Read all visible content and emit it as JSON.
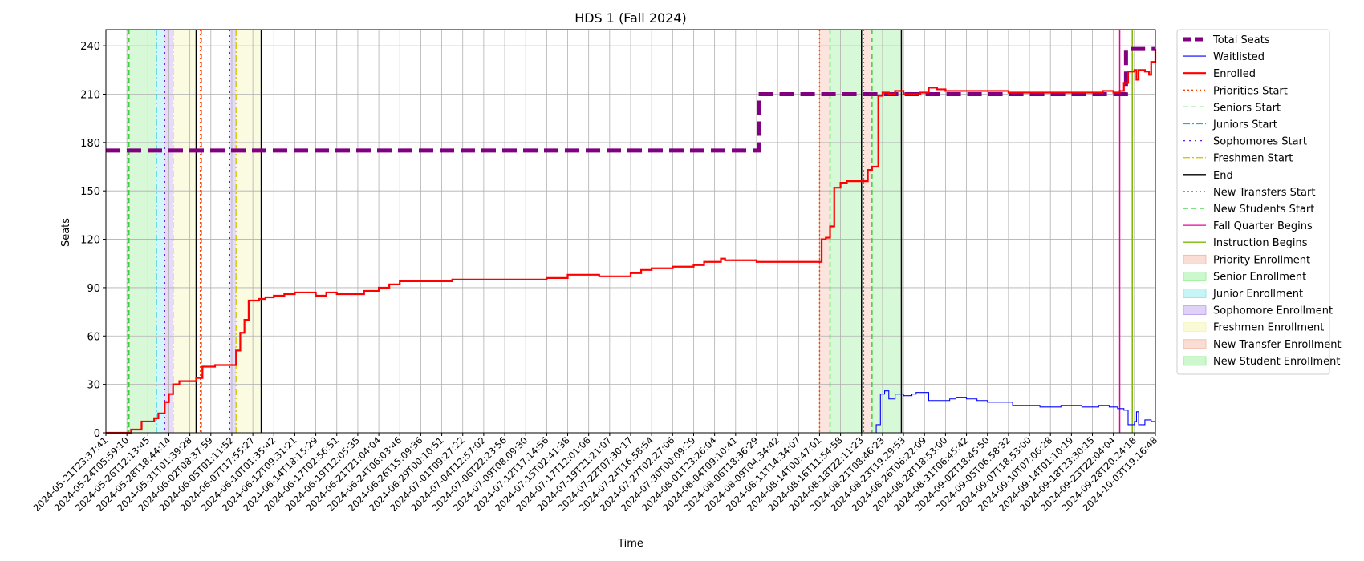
{
  "chart_data": {
    "type": "line",
    "title": "HDS 1 (Fall 2024)",
    "xlabel": "Time",
    "ylabel": "Seats",
    "ylim": [
      0,
      250
    ],
    "yticks": [
      0,
      30,
      60,
      90,
      120,
      150,
      180,
      210,
      240
    ],
    "grid": true,
    "legend_placement": "outside-right",
    "x_ticks": [
      "2024-05-21T23:37:41",
      "2024-05-24T05:59:10",
      "2024-05-26T12:13:45",
      "2024-05-28T18:44:14",
      "2024-05-31T01:39:28",
      "2024-06-02T08:37:59",
      "2024-06-05T01:11:52",
      "2024-06-07T17:55:27",
      "2024-06-10T01:35:42",
      "2024-06-12T09:31:21",
      "2024-06-14T18:15:29",
      "2024-06-17T02:56:51",
      "2024-06-19T12:05:35",
      "2024-06-21T21:04:04",
      "2024-06-24T06:03:46",
      "2024-06-26T15:09:36",
      "2024-06-29T00:10:51",
      "2024-07-01T09:27:22",
      "2024-07-04T12:57:02",
      "2024-07-06T22:23:56",
      "2024-07-09T08:09:30",
      "2024-07-12T17:14:56",
      "2024-07-15T02:41:38",
      "2024-07-17T12:01:06",
      "2024-07-19T21:21:07",
      "2024-07-22T07:30:17",
      "2024-07-24T16:58:54",
      "2024-07-27T02:27:06",
      "2024-07-30T00:09:29",
      "2024-08-01T23:26:04",
      "2024-08-04T09:10:41",
      "2024-08-06T18:36:29",
      "2024-08-09T04:34:42",
      "2024-08-11T14:34:07",
      "2024-08-14T00:47:01",
      "2024-08-16T11:54:58",
      "2024-08-18T22:11:23",
      "2024-08-21T08:46:23",
      "2024-08-23T19:29:53",
      "2024-08-26T06:22:09",
      "2024-08-28T18:53:00",
      "2024-08-31T06:45:42",
      "2024-09-02T18:45:50",
      "2024-09-05T06:58:32",
      "2024-09-07T18:53:00",
      "2024-09-10T07:06:28",
      "2024-09-14T01:10:19",
      "2024-09-18T23:30:15",
      "2024-09-23T22:04:04",
      "2024-09-28T20:24:18",
      "2024-10-03T19:16:48"
    ],
    "series": [
      {
        "name": "Total Seats",
        "color": "#800080",
        "style": "dashed-thick",
        "points": [
          [
            0,
            175
          ],
          [
            31.1,
            175
          ],
          [
            31.1,
            210
          ],
          [
            48.6,
            210
          ],
          [
            48.6,
            238
          ],
          [
            50,
            238
          ]
        ]
      },
      {
        "name": "Waitlisted",
        "color": "#0000ff",
        "style": "solid-thin",
        "points": [
          [
            0,
            0
          ],
          [
            36.5,
            0
          ],
          [
            36.7,
            5
          ],
          [
            36.9,
            24
          ],
          [
            37.1,
            26
          ],
          [
            37.3,
            21
          ],
          [
            37.6,
            24
          ],
          [
            38.0,
            23
          ],
          [
            38.4,
            24
          ],
          [
            38.6,
            25
          ],
          [
            38.9,
            25
          ],
          [
            39.2,
            20
          ],
          [
            39.8,
            20
          ],
          [
            40.2,
            21
          ],
          [
            40.5,
            22
          ],
          [
            41.0,
            21
          ],
          [
            41.5,
            20
          ],
          [
            42,
            19
          ],
          [
            43,
            19
          ],
          [
            43.2,
            17
          ],
          [
            44,
            17
          ],
          [
            44.5,
            16
          ],
          [
            45,
            16
          ],
          [
            45.5,
            17
          ],
          [
            46,
            17
          ],
          [
            46.5,
            16
          ],
          [
            47,
            16
          ],
          [
            47.3,
            17
          ],
          [
            47.8,
            16
          ],
          [
            48.2,
            15
          ],
          [
            48.5,
            14
          ],
          [
            48.7,
            5
          ],
          [
            49.0,
            7
          ],
          [
            49.1,
            13
          ],
          [
            49.2,
            5
          ],
          [
            49.5,
            8
          ],
          [
            49.8,
            7
          ],
          [
            50,
            2
          ]
        ]
      },
      {
        "name": "Enrolled",
        "color": "#ff0000",
        "style": "solid-thick",
        "points": [
          [
            0,
            0
          ],
          [
            1.1,
            0
          ],
          [
            1.2,
            2
          ],
          [
            1.5,
            2
          ],
          [
            1.7,
            7
          ],
          [
            2.0,
            7
          ],
          [
            2.3,
            9
          ],
          [
            2.5,
            12
          ],
          [
            2.8,
            19
          ],
          [
            3.0,
            24
          ],
          [
            3.2,
            30
          ],
          [
            3.5,
            32
          ],
          [
            3.9,
            32
          ],
          [
            4.3,
            34
          ],
          [
            4.6,
            41
          ],
          [
            5.2,
            42
          ],
          [
            5.7,
            42
          ],
          [
            6.0,
            42
          ],
          [
            6.2,
            51
          ],
          [
            6.4,
            62
          ],
          [
            6.6,
            70
          ],
          [
            6.8,
            82
          ],
          [
            7.3,
            83
          ],
          [
            7.6,
            84
          ],
          [
            8.0,
            85
          ],
          [
            8.5,
            86
          ],
          [
            9.0,
            87
          ],
          [
            9.5,
            87
          ],
          [
            10.0,
            85
          ],
          [
            10.5,
            87
          ],
          [
            11,
            86
          ],
          [
            12,
            86
          ],
          [
            12.3,
            88
          ],
          [
            13,
            90
          ],
          [
            13.5,
            92
          ],
          [
            14,
            94
          ],
          [
            15,
            94
          ],
          [
            16,
            94
          ],
          [
            16.5,
            95
          ],
          [
            18,
            95
          ],
          [
            19,
            95
          ],
          [
            20,
            95
          ],
          [
            21,
            96
          ],
          [
            22,
            98
          ],
          [
            23.5,
            97
          ],
          [
            24,
            97
          ],
          [
            25,
            99
          ],
          [
            25.5,
            101
          ],
          [
            26,
            102
          ],
          [
            27,
            103
          ],
          [
            28,
            104
          ],
          [
            28.5,
            106
          ],
          [
            29,
            106
          ],
          [
            29.3,
            108
          ],
          [
            29.5,
            107
          ],
          [
            30,
            107
          ],
          [
            31,
            106
          ],
          [
            32,
            106
          ],
          [
            33,
            106
          ],
          [
            34,
            106
          ],
          [
            34.1,
            120
          ],
          [
            34.3,
            121
          ],
          [
            34.5,
            128
          ],
          [
            34.7,
            152
          ],
          [
            35.0,
            155
          ],
          [
            35.3,
            156
          ],
          [
            36.0,
            156
          ],
          [
            36.3,
            163
          ],
          [
            36.5,
            165
          ],
          [
            36.8,
            209
          ],
          [
            37.0,
            211
          ],
          [
            37.3,
            210
          ],
          [
            37.6,
            212
          ],
          [
            38.0,
            210
          ],
          [
            38.8,
            211
          ],
          [
            39.2,
            214
          ],
          [
            39.6,
            213
          ],
          [
            40,
            212
          ],
          [
            41,
            212
          ],
          [
            41.5,
            212
          ],
          [
            42,
            212
          ],
          [
            43,
            211
          ],
          [
            44,
            211
          ],
          [
            45,
            211
          ],
          [
            46,
            211
          ],
          [
            47,
            211
          ],
          [
            47.5,
            212
          ],
          [
            48,
            211
          ],
          [
            48.3,
            212
          ],
          [
            48.5,
            217
          ],
          [
            48.7,
            224
          ],
          [
            49.0,
            225
          ],
          [
            49.1,
            219
          ],
          [
            49.2,
            225
          ],
          [
            49.5,
            224
          ],
          [
            49.7,
            222
          ],
          [
            49.8,
            230
          ],
          [
            50,
            238
          ]
        ]
      }
    ],
    "vertical_lines": [
      {
        "name": "Priorities Start",
        "x": 1.05,
        "color": "#ff4500",
        "style": "dotted"
      },
      {
        "name": "Seniors Start",
        "x": 1.1,
        "color": "#32cd32",
        "style": "dashed"
      },
      {
        "name": "Juniors Start",
        "x": 2.4,
        "color": "#00bcd4",
        "style": "dashdot"
      },
      {
        "name": "Sophomores Start",
        "x": 2.8,
        "color": "#6a1ad6",
        "style": "dashdot2"
      },
      {
        "name": "Freshmen Start",
        "x": 3.2,
        "color": "#d4c800",
        "style": "dashdot"
      },
      {
        "name": "End",
        "x": 4.3,
        "color": "#000000",
        "style": "solid"
      },
      {
        "name": "Priorities Start",
        "x": 4.5,
        "color": "#ff4500",
        "style": "dotted"
      },
      {
        "name": "Seniors Start",
        "x": 4.55,
        "color": "#32cd32",
        "style": "dashed"
      },
      {
        "name": "Sophomores Start",
        "x": 5.9,
        "color": "#6a1ad6",
        "style": "dashdot2"
      },
      {
        "name": "Freshmen Start",
        "x": 6.2,
        "color": "#d4c800",
        "style": "dashdot"
      },
      {
        "name": "End",
        "x": 7.4,
        "color": "#000000",
        "style": "solid"
      },
      {
        "name": "New Transfers Start",
        "x": 34.0,
        "color": "#ff4500",
        "style": "dotted"
      },
      {
        "name": "New Students Start",
        "x": 34.5,
        "color": "#32cd32",
        "style": "dashed"
      },
      {
        "name": "End",
        "x": 36.0,
        "color": "#000000",
        "style": "solid"
      },
      {
        "name": "New Transfers Start",
        "x": 36.1,
        "color": "#ff4500",
        "style": "dotted"
      },
      {
        "name": "New Students Start",
        "x": 36.5,
        "color": "#32cd32",
        "style": "dashed"
      },
      {
        "name": "End",
        "x": 37.9,
        "color": "#000000",
        "style": "solid"
      },
      {
        "name": "Fall Quarter Begins",
        "x": 48.3,
        "color": "#e6009a",
        "style": "solid"
      },
      {
        "name": "Instruction Begins",
        "x": 48.9,
        "color": "#7cb800",
        "style": "solid"
      }
    ],
    "shaded_regions": [
      {
        "name": "Senior Enrollment",
        "x0": 1.1,
        "x1": 2.4,
        "color": "#90ee90"
      },
      {
        "name": "Junior Enrollment",
        "x0": 2.4,
        "x1": 2.8,
        "color": "#7fe8ee"
      },
      {
        "name": "Sophomore Enrollment",
        "x0": 2.8,
        "x1": 3.2,
        "color": "#b89cee"
      },
      {
        "name": "Freshmen Enrollment",
        "x0": 3.2,
        "x1": 4.3,
        "color": "#f4f4a8"
      },
      {
        "name": "Priority Enrollment",
        "x0": 4.5,
        "x1": 4.55,
        "color": "#f4b4a0"
      },
      {
        "name": "Sophomore Enrollment",
        "x0": 5.9,
        "x1": 6.2,
        "color": "#b89cee"
      },
      {
        "name": "Freshmen Enrollment",
        "x0": 6.2,
        "x1": 7.4,
        "color": "#f4f4a8"
      },
      {
        "name": "New Transfer Enrollment",
        "x0": 34.0,
        "x1": 34.5,
        "color": "#f4b4a0"
      },
      {
        "name": "New Student Enrollment",
        "x0": 34.5,
        "x1": 36.0,
        "color": "#90ee90"
      },
      {
        "name": "New Transfer Enrollment",
        "x0": 36.1,
        "x1": 36.5,
        "color": "#f4b4a0"
      },
      {
        "name": "New Student Enrollment",
        "x0": 36.5,
        "x1": 37.9,
        "color": "#90ee90"
      }
    ]
  },
  "legend": [
    {
      "label": "Total Seats",
      "kind": "line",
      "color": "#800080",
      "style": "dashed-thick"
    },
    {
      "label": "Waitlisted",
      "kind": "line",
      "color": "#0000ff",
      "style": "solid-thin"
    },
    {
      "label": "Enrolled",
      "kind": "line",
      "color": "#ff0000",
      "style": "solid-thick"
    },
    {
      "label": "Priorities Start",
      "kind": "line",
      "color": "#ff4500",
      "style": "dotted"
    },
    {
      "label": "Seniors Start",
      "kind": "line",
      "color": "#32cd32",
      "style": "dashed"
    },
    {
      "label": "Juniors Start",
      "kind": "line",
      "color": "#00bcd4",
      "style": "dashdot"
    },
    {
      "label": "Sophomores Start",
      "kind": "line",
      "color": "#6a1ad6",
      "style": "dashdot2"
    },
    {
      "label": "Freshmen Start",
      "kind": "line",
      "color": "#d4c800",
      "style": "dashdot"
    },
    {
      "label": "End",
      "kind": "line",
      "color": "#000000",
      "style": "solid"
    },
    {
      "label": "New Transfers Start",
      "kind": "line",
      "color": "#ff4500",
      "style": "dotted"
    },
    {
      "label": "New Students Start",
      "kind": "line",
      "color": "#32cd32",
      "style": "dashed"
    },
    {
      "label": "Fall Quarter Begins",
      "kind": "line",
      "color": "#e6009a",
      "style": "solid"
    },
    {
      "label": "Instruction Begins",
      "kind": "line",
      "color": "#7cb800",
      "style": "solid"
    },
    {
      "label": "Priority Enrollment",
      "kind": "patch",
      "color": "#f4b4a0"
    },
    {
      "label": "Senior Enrollment",
      "kind": "patch",
      "color": "#90ee90"
    },
    {
      "label": "Junior Enrollment",
      "kind": "patch",
      "color": "#7fe8ee"
    },
    {
      "label": "Sophomore Enrollment",
      "kind": "patch",
      "color": "#b89cee"
    },
    {
      "label": "Freshmen Enrollment",
      "kind": "patch",
      "color": "#f4f4a8"
    },
    {
      "label": "New Transfer Enrollment",
      "kind": "patch",
      "color": "#f4b4a0"
    },
    {
      "label": "New Student Enrollment",
      "kind": "patch",
      "color": "#90ee90"
    }
  ]
}
